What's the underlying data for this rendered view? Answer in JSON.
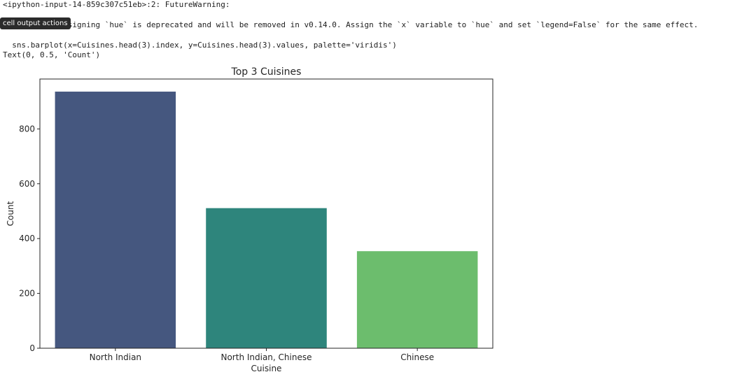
{
  "output": {
    "warning_header": "<ipython-input-14-859c307c51eb>:2: FutureWarning:",
    "warning_message_visible": "te` without assigning `hue` is deprecated and will be removed in v0.14.0. Assign the `x` variable to `hue` and set `legend=False` for the same effect.",
    "code_line": "  sns.barplot(x=Cuisines.head(3).index, y=Cuisines.head(3).values, palette='viridis')",
    "text_repr": "Text(0, 0.5, 'Count')"
  },
  "tooltip": {
    "label": "cell output actions"
  },
  "chart_data": {
    "type": "bar",
    "title": "Top 3 Cuisines",
    "xlabel": "Cuisine",
    "ylabel": "Count",
    "categories": [
      "North Indian",
      "North Indian, Chinese",
      "Chinese"
    ],
    "values": [
      936,
      511,
      354
    ],
    "colors": [
      "#45577f",
      "#2e857c",
      "#6cbd6d"
    ],
    "ylim": [
      0,
      982
    ],
    "yticks": [
      0,
      200,
      400,
      600,
      800
    ],
    "grid": false
  }
}
